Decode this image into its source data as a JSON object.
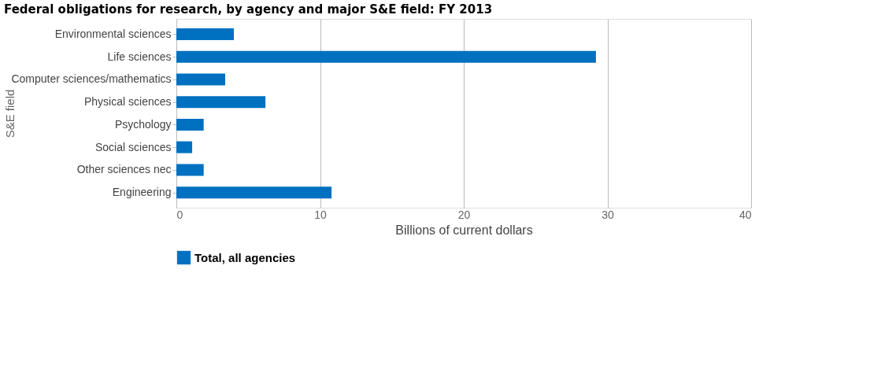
{
  "chart_data": {
    "type": "bar",
    "orientation": "horizontal",
    "title": "Federal obligations for research, by agency and major S&E field: FY 2013",
    "categories": [
      "Environmental sciences",
      "Life sciences",
      "Computer sciences/mathematics",
      "Physical sciences",
      "Psychology",
      "Social sciences",
      "Other sciences nec",
      "Engineering"
    ],
    "series": [
      {
        "name": "Total, all agencies",
        "color": "#0070c0",
        "values": [
          4.0,
          29.2,
          3.4,
          6.2,
          1.9,
          1.1,
          1.9,
          10.8
        ]
      }
    ],
    "xlim": [
      0,
      40
    ],
    "xticks": [
      0,
      10,
      20,
      30,
      40
    ],
    "xlabel": "Billions of current dollars",
    "ylabel": "S&E field",
    "grid": "x",
    "legend": "bottom"
  }
}
